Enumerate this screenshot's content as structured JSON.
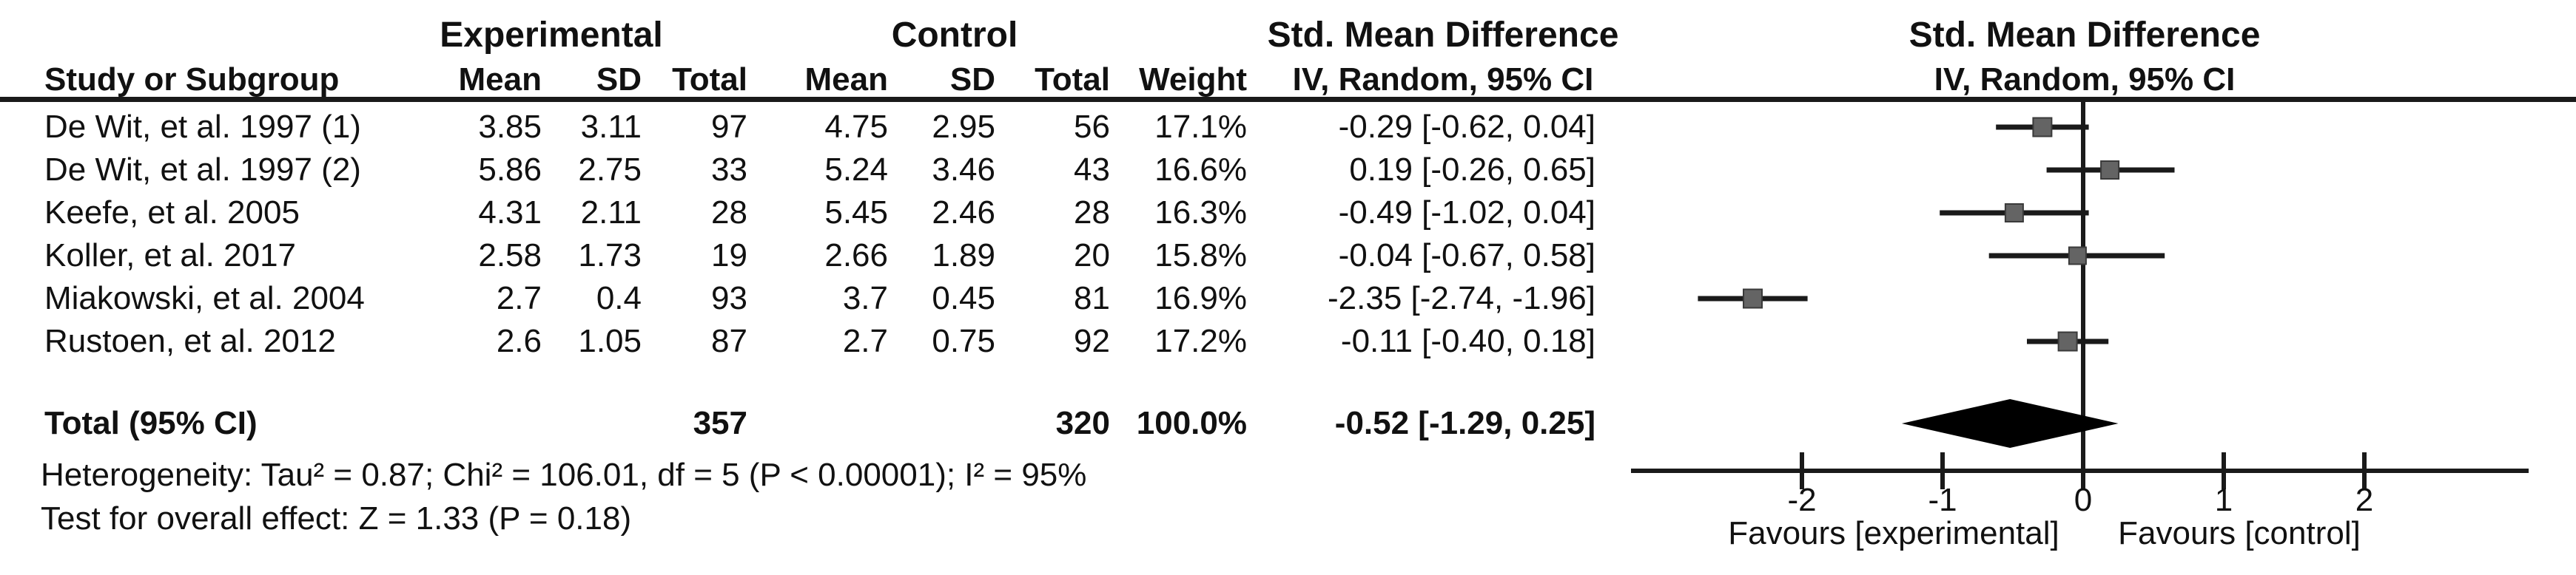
{
  "figure": {
    "kind": "forest-plot",
    "background": "#ffffff",
    "text_color": "#111111",
    "square_color": "#646464",
    "square_border_color": "#3a3a3a",
    "line_color": "#1a1a1a",
    "diamond_color": "#000000"
  },
  "headers": {
    "experimental": "Experimental",
    "control": "Control",
    "smd_left": "Std. Mean Difference",
    "smd_right": "Std. Mean Difference",
    "ivr_left": "IV, Random, 95% CI",
    "ivr_right": "IV, Random, 95% CI",
    "study_or_subgroup": "Study or Subgroup",
    "mean1": "Mean",
    "sd1": "SD",
    "total1": "Total",
    "mean2": "Mean",
    "sd2": "SD",
    "total2": "Total",
    "weight": "Weight"
  },
  "studies": [
    {
      "name": "De Wit, et al. 1997 (1)",
      "exp_mean": "3.85",
      "exp_sd": "3.11",
      "exp_total": "97",
      "ctl_mean": "4.75",
      "ctl_sd": "2.95",
      "ctl_total": "56",
      "weight": "17.1%",
      "weight_value": 17.1,
      "ci_text": "-0.29 [-0.62, 0.04]",
      "est": -0.29,
      "lo": -0.62,
      "hi": 0.04
    },
    {
      "name": "De Wit, et al. 1997 (2)",
      "exp_mean": "5.86",
      "exp_sd": "2.75",
      "exp_total": "33",
      "ctl_mean": "5.24",
      "ctl_sd": "3.46",
      "ctl_total": "43",
      "weight": "16.6%",
      "weight_value": 16.6,
      "ci_text": "0.19 [-0.26, 0.65]",
      "est": 0.19,
      "lo": -0.26,
      "hi": 0.65
    },
    {
      "name": "Keefe, et al. 2005",
      "exp_mean": "4.31",
      "exp_sd": "2.11",
      "exp_total": "28",
      "ctl_mean": "5.45",
      "ctl_sd": "2.46",
      "ctl_total": "28",
      "weight": "16.3%",
      "weight_value": 16.3,
      "ci_text": "-0.49 [-1.02, 0.04]",
      "est": -0.49,
      "lo": -1.02,
      "hi": 0.04
    },
    {
      "name": "Koller, et al. 2017",
      "exp_mean": "2.58",
      "exp_sd": "1.73",
      "exp_total": "19",
      "ctl_mean": "2.66",
      "ctl_sd": "1.89",
      "ctl_total": "20",
      "weight": "15.8%",
      "weight_value": 15.8,
      "ci_text": "-0.04 [-0.67, 0.58]",
      "est": -0.04,
      "lo": -0.67,
      "hi": 0.58
    },
    {
      "name": "Miakowski, et al. 2004",
      "exp_mean": "2.7",
      "exp_sd": "0.4",
      "exp_total": "93",
      "ctl_mean": "3.7",
      "ctl_sd": "0.45",
      "ctl_total": "81",
      "weight": "16.9%",
      "weight_value": 16.9,
      "ci_text": "-2.35 [-2.74, -1.96]",
      "est": -2.35,
      "lo": -2.74,
      "hi": -1.96
    },
    {
      "name": "Rustoen, et al. 2012",
      "exp_mean": "2.6",
      "exp_sd": "1.05",
      "exp_total": "87",
      "ctl_mean": "2.7",
      "ctl_sd": "0.75",
      "ctl_total": "92",
      "weight": "17.2%",
      "weight_value": 17.2,
      "ci_text": "-0.11 [-0.40, 0.18]",
      "est": -0.11,
      "lo": -0.4,
      "hi": 0.18
    }
  ],
  "total": {
    "label": "Total (95% CI)",
    "exp_total": "357",
    "ctl_total": "320",
    "weight": "100.0%",
    "ci_text": "-0.52 [-1.29, 0.25]",
    "est": -0.52,
    "lo": -1.29,
    "hi": 0.25
  },
  "footer": {
    "heterogeneity": "Heterogeneity: Tau² = 0.87; Chi² = 106.01, df = 5 (P < 0.00001); I² = 95%",
    "overall_effect": "Test for overall effect: Z = 1.33 (P = 0.18)"
  },
  "axis": {
    "tick_values": [
      -2,
      -1,
      0,
      1,
      2
    ],
    "favours_left": "Favours [experimental]",
    "favours_right": "Favours [control]"
  },
  "chart_data": {
    "type": "scatter",
    "subtype": "forest-plot",
    "title": "Std. Mean Difference",
    "method": "IV, Random, 95% CI",
    "xlabel": "Std. Mean Difference",
    "x_ticks": [
      -2,
      -1,
      0,
      1,
      2
    ],
    "xlim": [
      -3.2,
      3.2
    ],
    "favours_left": "Favours [experimental]",
    "favours_right": "Favours [control]",
    "series": [
      {
        "name": "De Wit, et al. 1997 (1)",
        "estimate": -0.29,
        "ci_low": -0.62,
        "ci_high": 0.04,
        "weight_pct": 17.1,
        "exp_mean": 3.85,
        "exp_sd": 3.11,
        "exp_n": 97,
        "ctl_mean": 4.75,
        "ctl_sd": 2.95,
        "ctl_n": 56
      },
      {
        "name": "De Wit, et al. 1997 (2)",
        "estimate": 0.19,
        "ci_low": -0.26,
        "ci_high": 0.65,
        "weight_pct": 16.6,
        "exp_mean": 5.86,
        "exp_sd": 2.75,
        "exp_n": 33,
        "ctl_mean": 5.24,
        "ctl_sd": 3.46,
        "ctl_n": 43
      },
      {
        "name": "Keefe, et al. 2005",
        "estimate": -0.49,
        "ci_low": -1.02,
        "ci_high": 0.04,
        "weight_pct": 16.3,
        "exp_mean": 4.31,
        "exp_sd": 2.11,
        "exp_n": 28,
        "ctl_mean": 5.45,
        "ctl_sd": 2.46,
        "ctl_n": 28
      },
      {
        "name": "Koller, et al. 2017",
        "estimate": -0.04,
        "ci_low": -0.67,
        "ci_high": 0.58,
        "weight_pct": 15.8,
        "exp_mean": 2.58,
        "exp_sd": 1.73,
        "exp_n": 19,
        "ctl_mean": 2.66,
        "ctl_sd": 1.89,
        "ctl_n": 20
      },
      {
        "name": "Miakowski, et al. 2004",
        "estimate": -2.35,
        "ci_low": -2.74,
        "ci_high": -1.96,
        "weight_pct": 16.9,
        "exp_mean": 2.7,
        "exp_sd": 0.4,
        "exp_n": 93,
        "ctl_mean": 3.7,
        "ctl_sd": 0.45,
        "ctl_n": 81
      },
      {
        "name": "Rustoen, et al. 2012",
        "estimate": -0.11,
        "ci_low": -0.4,
        "ci_high": 0.18,
        "weight_pct": 17.2,
        "exp_mean": 2.6,
        "exp_sd": 1.05,
        "exp_n": 87,
        "ctl_mean": 2.7,
        "ctl_sd": 0.75,
        "ctl_n": 92
      }
    ],
    "pooled": {
      "name": "Total (95% CI)",
      "estimate": -0.52,
      "ci_low": -1.29,
      "ci_high": 0.25,
      "weight_pct": 100.0,
      "exp_n": 357,
      "ctl_n": 320
    },
    "heterogeneity": {
      "tau2": 0.87,
      "chi2": 106.01,
      "df": 5,
      "p": "< 0.00001",
      "i2_pct": 95
    },
    "overall_effect": {
      "z": 1.33,
      "p": 0.18
    }
  }
}
